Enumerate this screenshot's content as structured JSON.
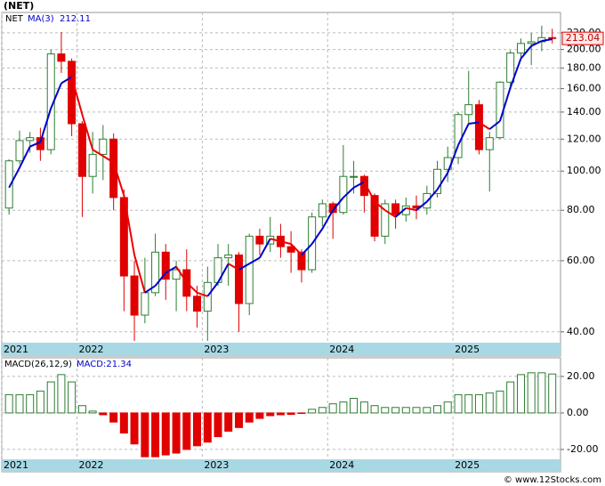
{
  "chart_data": [
    {
      "type": "candlestick",
      "title": "(NET)",
      "name": "NET",
      "log_scale": true,
      "grid": true,
      "up_color": "#2e7d32",
      "down_color": "#e00000",
      "x": [
        2021.458,
        2021.542,
        2021.625,
        2021.708,
        2021.792,
        2021.875,
        2021.958,
        2022.042,
        2022.125,
        2022.208,
        2022.292,
        2022.375,
        2022.458,
        2022.542,
        2022.625,
        2022.708,
        2022.792,
        2022.875,
        2022.958,
        2023.042,
        2023.125,
        2023.208,
        2023.292,
        2023.375,
        2023.458,
        2023.542,
        2023.625,
        2023.708,
        2023.792,
        2023.875,
        2023.958,
        2024.042,
        2024.125,
        2024.208,
        2024.292,
        2024.375,
        2024.458,
        2024.542,
        2024.625,
        2024.708,
        2024.792,
        2024.875,
        2024.958,
        2025.042,
        2025.125,
        2025.208,
        2025.292,
        2025.375,
        2025.458,
        2025.542,
        2025.625,
        2025.708,
        2025.792
      ],
      "open": [
        81,
        106,
        119,
        121,
        113,
        195,
        187,
        131,
        97,
        110,
        120,
        86,
        55,
        44,
        50,
        63,
        54,
        57,
        49,
        45,
        53,
        61,
        62,
        47,
        69,
        66,
        69,
        65,
        63,
        57,
        77,
        83,
        79,
        97,
        97,
        87,
        69,
        83,
        78,
        82,
        81,
        88,
        101,
        108,
        138,
        146,
        113,
        121,
        166,
        196,
        207,
        209,
        214
      ],
      "high": [
        107,
        126,
        125,
        128,
        200,
        221,
        190,
        133,
        125,
        130,
        124,
        90,
        60,
        61,
        70,
        66,
        60,
        64,
        52,
        58,
        66,
        66,
        63,
        70,
        72,
        77,
        74,
        71,
        64,
        79,
        85,
        84,
        116,
        106,
        98,
        88,
        85,
        85,
        86,
        87,
        92,
        106,
        115,
        140,
        177,
        150,
        125,
        167,
        199,
        213,
        220,
        229,
        225
      ],
      "low": [
        78,
        104,
        111,
        106,
        110,
        175,
        122,
        77,
        88,
        95,
        80,
        45,
        38,
        42,
        49,
        48,
        45,
        45,
        41,
        38,
        52,
        52,
        40,
        44,
        62,
        63,
        61,
        56,
        53,
        56,
        73,
        68,
        78,
        88,
        79,
        67,
        66,
        72,
        75,
        76,
        78,
        86,
        94,
        104,
        130,
        110,
        89,
        120,
        159,
        188,
        183,
        198,
        207
      ],
      "close": [
        106,
        119,
        121,
        113,
        195,
        187,
        131,
        97,
        110,
        120,
        86,
        55,
        44,
        50,
        63,
        54,
        57,
        49,
        45,
        53,
        61,
        62,
        47,
        69,
        66,
        69,
        65,
        63,
        57,
        77,
        83,
        79,
        97,
        97,
        87,
        69,
        83,
        78,
        82,
        81,
        88,
        101,
        108,
        138,
        146,
        113,
        121,
        166,
        196,
        207,
        209,
        214,
        213.04
      ],
      "series": [
        {
          "name": "MA(3)",
          "color_up": "#0000cc",
          "color_down": "#ee0000",
          "values": [
            91,
            102,
            115,
            118,
            143,
            165,
            171,
            138,
            113,
            109,
            105,
            87,
            62,
            50,
            52,
            56,
            58,
            53,
            50,
            49,
            53,
            59,
            57,
            59,
            61,
            68,
            67,
            66,
            62,
            66,
            72,
            80,
            86,
            91,
            94,
            84,
            80,
            77,
            81,
            80,
            84,
            90,
            99,
            116,
            131,
            132,
            127,
            133,
            161,
            190,
            204,
            210,
            212.11
          ]
        }
      ],
      "xlim": [
        2021.4,
        2025.858
      ],
      "xticks": [
        {
          "value": 2021.4,
          "label": "2021"
        },
        {
          "value": 2022,
          "label": "2022"
        },
        {
          "value": 2023,
          "label": "2023"
        },
        {
          "value": 2024,
          "label": "2024"
        },
        {
          "value": 2025,
          "label": "2025"
        }
      ],
      "ylim": [
        37.6,
        247
      ],
      "yticks": [
        {
          "value": 40,
          "label": "40.00"
        },
        {
          "value": 60,
          "label": "60.00"
        },
        {
          "value": 80,
          "label": "80.00"
        },
        {
          "value": 100,
          "label": "100.00"
        },
        {
          "value": 120,
          "label": "120.00"
        },
        {
          "value": 140,
          "label": "140.00"
        },
        {
          "value": 160,
          "label": "160.00"
        },
        {
          "value": 180,
          "label": "180.00"
        },
        {
          "value": 200,
          "label": "200.00"
        },
        {
          "value": 220,
          "label": "220.00"
        }
      ]
    },
    {
      "type": "bar",
      "name": "MACD(26,12,9)",
      "current_label": "MACD:21.34",
      "up_color": "#2e7d32",
      "down_color": "#e00000",
      "grid": true,
      "values": [
        10,
        10,
        10,
        12,
        17,
        21,
        17,
        4,
        1,
        -1,
        -5,
        -11,
        -17,
        -24,
        -24,
        -23,
        -22,
        -20,
        -18,
        -16,
        -13,
        -10,
        -8,
        -5,
        -3,
        -1.5,
        -1,
        -0.8,
        -0.3,
        2,
        3,
        5,
        6,
        8,
        6,
        4,
        3,
        3,
        3,
        3,
        3,
        4,
        6,
        10,
        10,
        10,
        11,
        12,
        17,
        21,
        22,
        22,
        21.34
      ],
      "ylim": [
        -25.4,
        30.2
      ],
      "yticks": [
        {
          "value": 20,
          "label": "20.00"
        },
        {
          "value": 0,
          "label": "0.00"
        },
        {
          "value": -20,
          "label": "-20.00"
        }
      ]
    }
  ],
  "footer": "© www.12Stocks.com"
}
